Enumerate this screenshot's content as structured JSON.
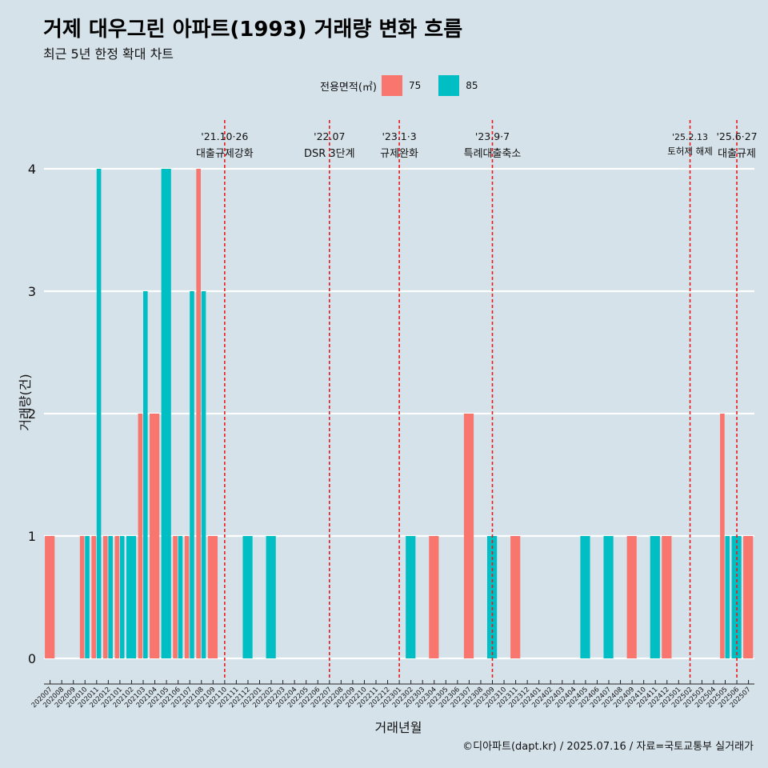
{
  "header": {
    "title": "거제 대우그린 아파트(1993) 거래량 변화 흐름",
    "subtitle": "최근 5년 한정 확대 차트"
  },
  "legend": {
    "title": "전용면적(㎡)",
    "items": [
      {
        "label": "75",
        "color": "#f8766d"
      },
      {
        "label": "85",
        "color": "#00bfc4"
      }
    ]
  },
  "caption": "©디아파트(dapt.kr) / 2025.07.16 / 자료=국토교통부 실거래가",
  "chart_data": {
    "type": "bar",
    "xlabel": "거래년월",
    "ylabel": "거래량(건)",
    "ylim": [
      0,
      4
    ],
    "yticks": [
      0,
      1,
      2,
      3,
      4
    ],
    "grid": true,
    "legend_position": "top",
    "categories": [
      "202007",
      "202008",
      "202009",
      "202010",
      "202011",
      "202012",
      "202101",
      "202102",
      "202103",
      "202104",
      "202105",
      "202106",
      "202107",
      "202108",
      "202109",
      "202110",
      "202111",
      "202112",
      "202201",
      "202202",
      "202203",
      "202204",
      "202205",
      "202206",
      "202207",
      "202208",
      "202209",
      "202210",
      "202211",
      "202212",
      "202301",
      "202302",
      "202303",
      "202304",
      "202305",
      "202306",
      "202307",
      "202308",
      "202309",
      "202310",
      "202311",
      "202312",
      "202401",
      "202402",
      "202403",
      "202404",
      "202405",
      "202406",
      "202407",
      "202408",
      "202409",
      "202410",
      "202411",
      "202412",
      "202501",
      "202502",
      "202503",
      "202504",
      "202505",
      "202506",
      "202507"
    ],
    "series": [
      {
        "name": "75",
        "color": "#f8766d",
        "values": [
          1,
          0,
          0,
          1,
          1,
          1,
          1,
          0,
          2,
          2,
          0,
          1,
          1,
          4,
          1,
          0,
          0,
          0,
          0,
          0,
          0,
          0,
          0,
          0,
          0,
          0,
          0,
          0,
          0,
          0,
          0,
          0,
          0,
          1,
          0,
          0,
          2,
          0,
          0,
          0,
          1,
          0,
          0,
          0,
          0,
          0,
          0,
          0,
          0,
          0,
          1,
          0,
          0,
          1,
          0,
          0,
          0,
          0,
          2,
          0,
          1
        ]
      },
      {
        "name": "85",
        "color": "#00bfc4",
        "values": [
          0,
          0,
          0,
          1,
          4,
          1,
          1,
          1,
          3,
          0,
          4,
          1,
          3,
          3,
          0,
          0,
          0,
          1,
          0,
          1,
          0,
          0,
          0,
          0,
          0,
          0,
          0,
          0,
          0,
          0,
          0,
          1,
          0,
          0,
          0,
          0,
          0,
          0,
          1,
          0,
          0,
          0,
          0,
          0,
          0,
          0,
          1,
          0,
          1,
          0,
          0,
          0,
          1,
          0,
          0,
          0,
          0,
          0,
          1,
          1,
          0
        ]
      }
    ],
    "annotations": [
      {
        "x": "202110",
        "date": "'21.10·26",
        "label": "대출규제강화"
      },
      {
        "x": "202207",
        "date": "'22.07",
        "label": "DSR 3단계"
      },
      {
        "x": "202301",
        "date": "'23.1·3",
        "label": "규제완화"
      },
      {
        "x": "202309",
        "date": "'23.9·7",
        "label": "특례대출축소"
      },
      {
        "x": "202502",
        "date": "'25.2.13",
        "label": "토허제 해제"
      },
      {
        "x": "202506",
        "date": "'25.6·27",
        "label": "대출규제"
      }
    ]
  }
}
